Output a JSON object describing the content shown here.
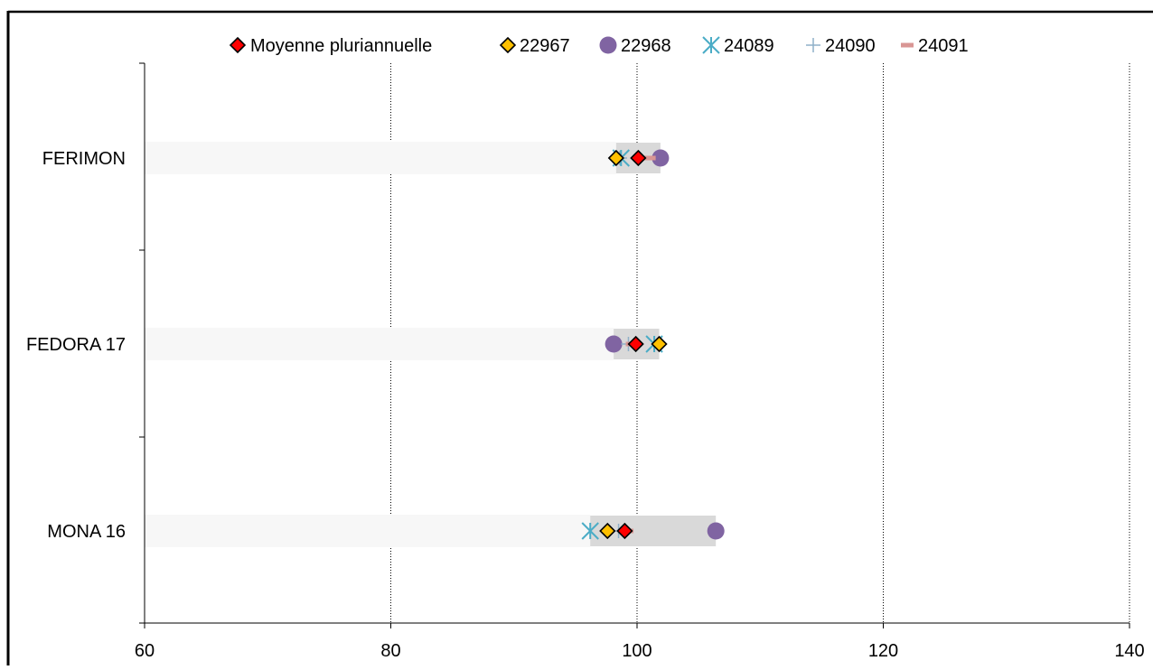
{
  "chart_data": {
    "type": "scatter",
    "title": "",
    "xlabel": "",
    "ylabel": "",
    "xlim": [
      60,
      140
    ],
    "xticks": [
      60,
      80,
      100,
      120,
      140
    ],
    "x_gridlines": "dotted vertical at 80, 100, 120, 140",
    "legend_position": "top",
    "categories": [
      "FERIMON",
      "FEDORA 17",
      "MONA 16"
    ],
    "range_bars": [
      {
        "category": "FERIMON",
        "min": 98.3,
        "max": 101.9
      },
      {
        "category": "FEDORA 17",
        "min": 98.1,
        "max": 101.8
      },
      {
        "category": "MONA 16",
        "min": 96.2,
        "max": 106.4
      }
    ],
    "series": [
      {
        "name": "Moyenne pluriannuelle",
        "marker": "diamond",
        "color": "#ff0000",
        "values": [
          100.1,
          99.9,
          99.0
        ]
      },
      {
        "name": "22967",
        "marker": "diamond",
        "color": "#ffc000",
        "values": [
          98.3,
          101.8,
          97.6
        ]
      },
      {
        "name": "22968",
        "marker": "circle",
        "color": "#8064a2",
        "values": [
          101.9,
          98.1,
          106.4
        ]
      },
      {
        "name": "24089",
        "marker": "asterisk",
        "color": "#4bacc6",
        "values": [
          98.7,
          101.4,
          96.2
        ]
      },
      {
        "name": "24090",
        "marker": "plus",
        "color": "#8fb0c9",
        "values": [
          98.6,
          99.3,
          98.5
        ]
      },
      {
        "name": "24091",
        "marker": "dash",
        "color": "#d99694",
        "values": [
          101.0,
          99.6,
          99.2
        ]
      }
    ]
  }
}
